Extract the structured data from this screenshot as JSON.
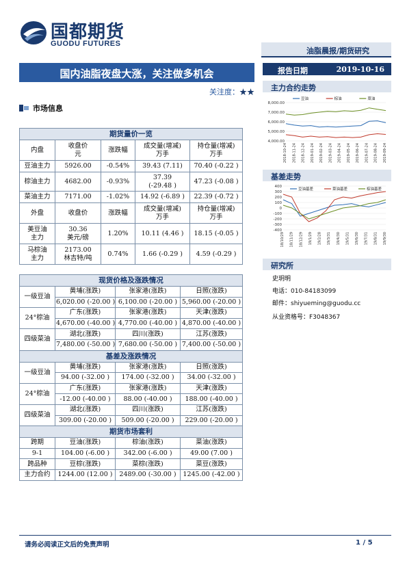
{
  "header": {
    "logo_cn": "国都期货",
    "logo_en": "GUODU FUTURES",
    "report_type": "油脂晨报/期货研究",
    "title": "国内油脂夜盘大涨，关注做多机会",
    "attention_label": "关注度：",
    "attention_stars": "★★",
    "date_label": "报告日期",
    "date_value": "2019-10-16"
  },
  "sidebar": {
    "main_contract_title": "主力合约走势",
    "basis_title": "基差走势",
    "research_title": "研究所",
    "analyst": "史玥明",
    "phone": "电话：010-84183099",
    "email": "邮件：shiyueming@guodu.cc",
    "license": "从业资格号：F3048367"
  },
  "market_info_title": "市场信息",
  "futures_section": {
    "title": "期货量价一览",
    "domestic_headers": [
      "内盘",
      "收盘价",
      "元",
      "涨跌幅",
      "成交量(增减)",
      "万手",
      "持仓量(增减)",
      "万手"
    ],
    "domestic_rows": [
      {
        "name": "豆油主力",
        "close": "5926.00",
        "chg": "-0.54%",
        "vol": "39.43 (7.11)",
        "oi": "70.40 (-0.22 )"
      },
      {
        "name": "棕油主力",
        "close": "4682.00",
        "chg": "-0.93%",
        "vol1": "37.39",
        "vol2": "(-29.48 )",
        "oi": "47.23 (-0.08 )"
      },
      {
        "name": "菜油主力",
        "close": "7171.00",
        "chg": "-1.02%",
        "vol": "14.92 (-6.89 )",
        "oi": "22.39 (-0.72 )"
      }
    ],
    "foreign_headers": [
      "外盘",
      "收盘价",
      "涨跌幅",
      "成交量(增减)",
      "万手",
      "持仓量(增减)",
      "万手"
    ],
    "foreign_rows": [
      {
        "name1": "美豆油",
        "name2": "主力",
        "close1": "30.36",
        "close2": "美元/磅",
        "chg": "1.20%",
        "vol": "10.11 (4.46 )",
        "oi": "18.15 (-0.05 )"
      },
      {
        "name1": "马棕油",
        "name2": "主力",
        "close1": "2173.00",
        "close2": "林吉特/吨",
        "chg": "0.74%",
        "vol": "1.66 (-0.29 )",
        "oi": "4.59 (-0.29 )"
      }
    ]
  },
  "spot_section": {
    "title": "现货价格及涨跌情况",
    "groups": [
      {
        "name": "一级豆油",
        "regions": [
          "黄埔(涨跌)",
          "张家港(涨跌)",
          "日照(涨跌)"
        ],
        "values": [
          "6,020.00 (-20.00 )",
          "6,100.00 (-20.00 )",
          "5,960.00 (-20.00 )"
        ]
      },
      {
        "name": "24°棕油",
        "regions": [
          "广东(涨跌)",
          "张家港(涨跌)",
          "天津(涨跌)"
        ],
        "values": [
          "4,670.00 (-40.00 )",
          "4,770.00 (-40.00 )",
          "4,870.00 (-40.00 )"
        ]
      },
      {
        "name": "四级菜油",
        "regions": [
          "湖北(涨跌)",
          "四川(涨跌)",
          "江苏(涨跌)"
        ],
        "values": [
          "7,480.00 (-50.00 )",
          "7,680.00 (-50.00 )",
          "7,400.00 (-50.00 )"
        ]
      }
    ]
  },
  "basis_section": {
    "title": "基差及涨跌情况",
    "groups": [
      {
        "name": "一级豆油",
        "regions": [
          "黄埔(涨跌)",
          "张家港(涨跌)",
          "日照(涨跌)"
        ],
        "values": [
          "94.00 (-32.00 )",
          "174.00 (-32.00 )",
          "34.00 (-32.00 )"
        ]
      },
      {
        "name": "24°棕油",
        "regions": [
          "广东(涨跌)",
          "张家港(涨跌)",
          "天津(涨跌)"
        ],
        "values": [
          "-12.00 (-40.00 )",
          "88.00 (-40.00 )",
          "188.00 (-40.00 )"
        ]
      },
      {
        "name": "四级菜油",
        "regions": [
          "湖北(涨跌)",
          "四川(涨跌)",
          "江苏(涨跌)"
        ],
        "values": [
          "309.00 (-20.00 )",
          "509.00 (-20.00 )",
          "229.00 (-20.00 )"
        ]
      }
    ]
  },
  "arb_section": {
    "title": "期货市场套利",
    "row1": [
      "跨期",
      "豆油(涨跌)",
      "棕油(涨跌)",
      "菜油(涨跌)"
    ],
    "row2": [
      "9-1",
      "104.00 (-6.00 )",
      "342.00   (-6.00 )",
      "49.00    (7.00 )"
    ],
    "row3": [
      "跨品种",
      "豆棕(涨跌)",
      "菜棕(涨跌)",
      "菜豆(涨跌)"
    ],
    "row4": [
      "主力合约",
      "1244.00 (12.00 )",
      "2489.00 (-30.00 )",
      "1245.00 (-42.00 )"
    ]
  },
  "chart_data": [
    {
      "type": "line",
      "legend": [
        "豆油",
        "棕油",
        "菜油"
      ],
      "legend_position": "top",
      "colors": [
        "#2e6db4",
        "#c0392b",
        "#6b8e23"
      ],
      "ylim": [
        4000,
        8000
      ],
      "yticks": [
        "4,000.00",
        "5,000.00",
        "6,000.00",
        "7,000.00",
        "8,000.00"
      ],
      "xticks": [
        "2018-10-24",
        "2018-11-24",
        "2018-12-24",
        "2019-01-24",
        "2019-02-24",
        "2019-03-24",
        "2019-04-24",
        "2019-05-24",
        "2019-06-24",
        "2019-07-24",
        "2019-08-24",
        "2019-09-24"
      ],
      "series": [
        {
          "name": "豆油",
          "values": [
            5800,
            5650,
            5550,
            5600,
            5450,
            5500,
            5450,
            5500,
            5550,
            5600,
            6050,
            6100,
            5900
          ]
        },
        {
          "name": "棕油",
          "values": [
            4650,
            4550,
            4400,
            4500,
            4400,
            4450,
            4350,
            4400,
            4350,
            4400,
            4650,
            4750,
            4680
          ]
        },
        {
          "name": "菜油",
          "values": [
            6800,
            6700,
            6750,
            6900,
            7000,
            7100,
            7050,
            7150,
            7100,
            7200,
            7450,
            7300,
            7170
          ]
        }
      ]
    },
    {
      "type": "line",
      "legend": [
        "豆油基差",
        "菜油基差",
        "棕油基差"
      ],
      "legend_position": "top",
      "colors": [
        "#2e6db4",
        "#c0392b",
        "#6b8e23"
      ],
      "ylim": [
        -400,
        400
      ],
      "yticks": [
        "-400",
        "-300",
        "-200",
        "-100",
        "0",
        "100",
        "200",
        "300",
        "400"
      ],
      "xticks": [
        "18/10/29",
        "18/11/29",
        "18/12/29",
        "19/1/29",
        "19/2/28",
        "19/3/31",
        "19/4/30",
        "19/5/31",
        "19/6/30",
        "19/7/31",
        "19/8/31",
        "19/9/30"
      ],
      "series": [
        {
          "name": "豆油基差",
          "values": [
            150,
            80,
            -150,
            -100,
            -50,
            0,
            50,
            60,
            80,
            40,
            20,
            60,
            100
          ]
        },
        {
          "name": "菜油基差",
          "values": [
            250,
            200,
            -100,
            -250,
            -180,
            -50,
            150,
            200,
            180,
            220,
            250,
            280,
            300
          ]
        },
        {
          "name": "棕油基差",
          "values": [
            50,
            0,
            -100,
            -200,
            -150,
            -100,
            -50,
            0,
            20,
            40,
            80,
            100,
            150
          ]
        }
      ]
    }
  ],
  "footer": {
    "disclaimer": "请务必阅读正文后的免责声明",
    "page": "1 / 5"
  }
}
